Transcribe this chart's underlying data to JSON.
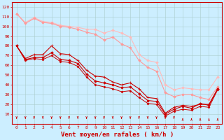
{
  "background_color": "#cceeff",
  "grid_color": "#aacccc",
  "font_color": "#cc0000",
  "xlabel": "Vent moyen/en rafales ( km/h )",
  "xlim": [
    -0.5,
    23.5
  ],
  "ylim": [
    0,
    125
  ],
  "yticks": [
    10,
    20,
    30,
    40,
    50,
    60,
    70,
    80,
    90,
    100,
    110,
    120
  ],
  "xticks": [
    0,
    1,
    2,
    3,
    4,
    5,
    6,
    7,
    8,
    9,
    10,
    11,
    12,
    13,
    14,
    15,
    16,
    17,
    18,
    19,
    20,
    21,
    22,
    23
  ],
  "tick_fontsize": 4.5,
  "label_fontsize": 6.5,
  "series": [
    {
      "x": [
        0,
        1,
        2,
        3,
        4,
        5,
        6,
        7,
        8,
        9,
        10,
        11,
        12,
        13,
        14,
        15,
        16,
        17,
        18,
        19,
        20,
        21,
        22,
        23
      ],
      "y": [
        113,
        104,
        109,
        105,
        104,
        101,
        100,
        99,
        97,
        97,
        93,
        96,
        93,
        89,
        71,
        65,
        63,
        40,
        35,
        37,
        36,
        35,
        35,
        48
      ],
      "color": "#ffbbbb",
      "lw": 0.8,
      "marker": "D",
      "ms": 1.8
    },
    {
      "x": [
        0,
        1,
        2,
        3,
        4,
        5,
        6,
        7,
        8,
        9,
        10,
        11,
        12,
        13,
        14,
        15,
        16,
        17,
        18,
        19,
        20,
        21,
        22,
        23
      ],
      "y": [
        113,
        103,
        108,
        104,
        103,
        100,
        99,
        97,
        94,
        92,
        86,
        89,
        82,
        78,
        65,
        58,
        54,
        32,
        28,
        30,
        30,
        27,
        25,
        38
      ],
      "color": "#ff9999",
      "lw": 0.8,
      "marker": "D",
      "ms": 1.8
    },
    {
      "x": [
        0,
        1,
        2,
        3,
        4,
        5,
        6,
        7,
        8,
        9,
        10,
        11,
        12,
        13,
        14,
        15,
        16,
        17,
        18,
        19,
        20,
        21,
        22,
        23
      ],
      "y": [
        80,
        67,
        71,
        71,
        80,
        72,
        71,
        65,
        55,
        49,
        48,
        43,
        40,
        42,
        36,
        27,
        26,
        11,
        17,
        19,
        18,
        20,
        20,
        36
      ],
      "color": "#cc0000",
      "lw": 0.8,
      "marker": "+",
      "ms": 2.5
    },
    {
      "x": [
        0,
        1,
        2,
        3,
        4,
        5,
        6,
        7,
        8,
        9,
        10,
        11,
        12,
        13,
        14,
        15,
        16,
        17,
        18,
        19,
        20,
        21,
        22,
        23
      ],
      "y": [
        80,
        66,
        68,
        68,
        73,
        66,
        65,
        62,
        51,
        44,
        42,
        40,
        37,
        38,
        31,
        24,
        23,
        10,
        15,
        18,
        16,
        21,
        19,
        36
      ],
      "color": "#cc0000",
      "lw": 0.8,
      "marker": "D",
      "ms": 1.8
    },
    {
      "x": [
        0,
        1,
        2,
        3,
        4,
        5,
        6,
        7,
        8,
        9,
        10,
        11,
        12,
        13,
        14,
        15,
        16,
        17,
        18,
        19,
        20,
        21,
        22,
        23
      ],
      "y": [
        80,
        65,
        67,
        66,
        70,
        64,
        63,
        59,
        48,
        40,
        38,
        36,
        33,
        34,
        27,
        21,
        20,
        8,
        13,
        15,
        14,
        18,
        17,
        35
      ],
      "color": "#cc0000",
      "lw": 0.7,
      "marker": "D",
      "ms": 1.5
    }
  ],
  "arrows": {
    "down_indices": [
      0,
      1,
      2,
      3,
      4,
      5,
      6,
      7,
      8,
      9,
      10,
      11,
      12,
      13,
      14,
      15,
      16,
      17,
      18
    ],
    "up_indices": [
      19,
      20,
      21,
      22,
      23
    ]
  }
}
